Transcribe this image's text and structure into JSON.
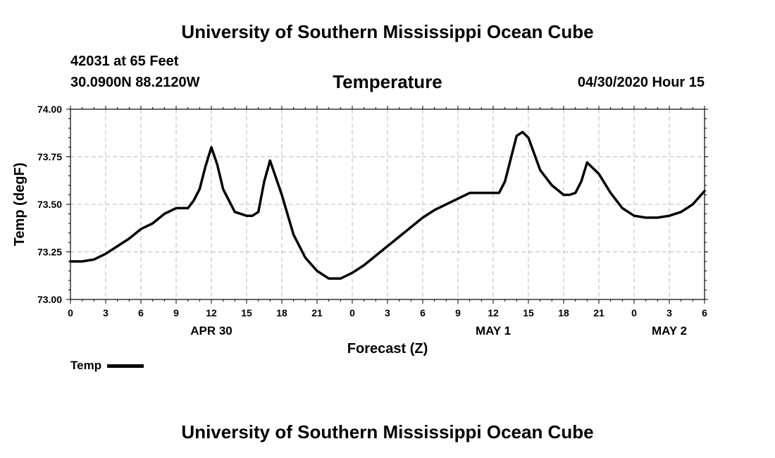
{
  "header": {
    "title": "University of Southern Mississippi Ocean Cube",
    "station": "42031 at 65 Feet",
    "latlon": "30.0900N 88.2120W",
    "chart_title": "Temperature",
    "timestamp": "04/30/2020 Hour 15"
  },
  "footer": {
    "title": "University of Southern Mississippi Ocean Cube"
  },
  "legend": {
    "label": "Temp",
    "color": "#000000"
  },
  "chart_data": {
    "type": "line",
    "title": "Temperature",
    "xlabel": "Forecast (Z)",
    "ylabel": "Temp (degF)",
    "ylim": [
      73.0,
      74.0
    ],
    "xlim": [
      0,
      54
    ],
    "grid": true,
    "x_tick_values": [
      0,
      3,
      6,
      9,
      12,
      15,
      18,
      21,
      24,
      27,
      30,
      33,
      36,
      39,
      42,
      45,
      48,
      51,
      54
    ],
    "x_tick_labels": [
      "0",
      "3",
      "6",
      "9",
      "12",
      "15",
      "18",
      "21",
      "0",
      "3",
      "6",
      "9",
      "12",
      "15",
      "18",
      "21",
      "0",
      "3",
      "6"
    ],
    "y_tick_values": [
      73.0,
      73.25,
      73.5,
      73.75,
      74.0
    ],
    "y_tick_labels": [
      "73.00",
      "73.25",
      "73.50",
      "73.75",
      "74.00"
    ],
    "day_labels": [
      {
        "label": "APR 30",
        "at": 12
      },
      {
        "label": "MAY 1",
        "at": 36
      },
      {
        "label": "MAY 2",
        "at": 51
      }
    ],
    "series": [
      {
        "name": "Temp",
        "color": "#000000",
        "x": [
          0,
          1,
          2,
          3,
          4,
          5,
          6,
          7,
          8,
          9,
          10,
          10.5,
          11,
          11.5,
          12,
          12.5,
          13,
          14,
          15,
          15.5,
          16,
          16.5,
          17,
          18,
          19,
          20,
          21,
          22,
          23,
          24,
          25,
          26,
          27,
          28,
          29,
          30,
          31,
          32,
          33,
          34,
          35,
          36,
          36.5,
          37,
          37.5,
          38,
          38.5,
          39,
          40,
          41,
          42,
          42.5,
          43,
          43.5,
          44,
          45,
          46,
          47,
          48,
          49,
          50,
          51,
          52,
          53,
          54
        ],
        "values": [
          73.2,
          73.2,
          73.21,
          73.24,
          73.28,
          73.32,
          73.37,
          73.4,
          73.45,
          73.48,
          73.48,
          73.52,
          73.58,
          73.7,
          73.8,
          73.71,
          73.58,
          73.46,
          73.44,
          73.44,
          73.46,
          73.62,
          73.73,
          73.55,
          73.34,
          73.22,
          73.15,
          73.11,
          73.11,
          73.14,
          73.18,
          73.23,
          73.28,
          73.33,
          73.38,
          73.43,
          73.47,
          73.5,
          73.53,
          73.56,
          73.56,
          73.56,
          73.56,
          73.62,
          73.74,
          73.86,
          73.88,
          73.85,
          73.68,
          73.6,
          73.55,
          73.55,
          73.56,
          73.62,
          73.72,
          73.66,
          73.56,
          73.48,
          73.44,
          73.43,
          73.43,
          73.44,
          73.46,
          73.5,
          73.57
        ]
      }
    ]
  }
}
